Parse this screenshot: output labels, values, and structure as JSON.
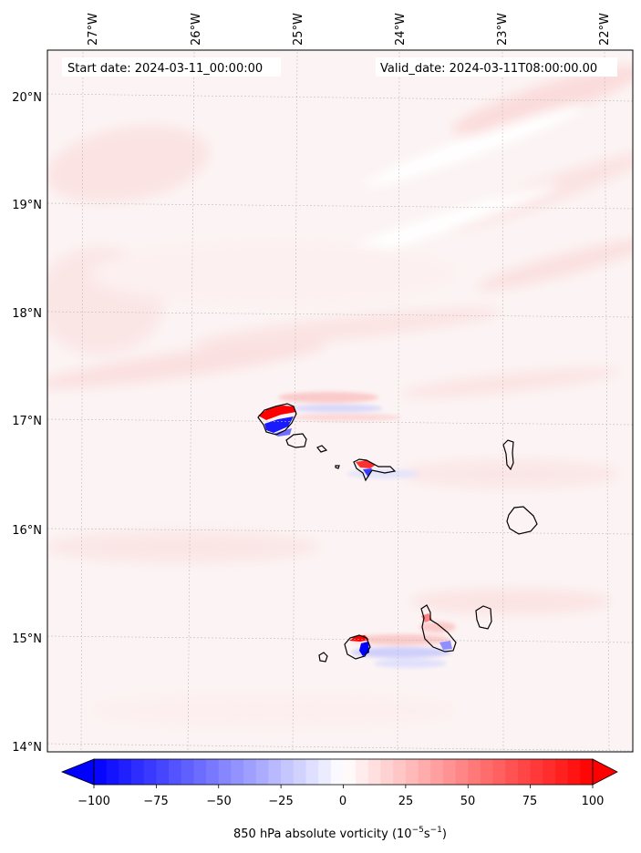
{
  "map": {
    "start_date": "Start date: 2024-03-11_00:00:00",
    "valid_date": "Valid_date: 2024-03-11T08:00:00.00",
    "lon_labels": [
      "27°W",
      "26°W",
      "25°W",
      "24°W",
      "23°W",
      "22°W"
    ],
    "lat_labels": [
      "20°N",
      "19°N",
      "18°N",
      "17°N",
      "16°N",
      "15°N",
      "14°N"
    ],
    "gridlines": true,
    "colors": {
      "positive": "#ff0000",
      "negative": "#0000ff",
      "background_tint": "#fdf3f3"
    }
  },
  "colorbar": {
    "label_prefix": "850 hPa absolute vorticity (10",
    "label_exp1": "−5",
    "label_mid": "s",
    "label_exp2": "−1",
    "label_suffix": ")",
    "ticks": [
      "−100",
      "−75",
      "−50",
      "−25",
      "0",
      "25",
      "50",
      "75",
      "100"
    ],
    "min": -100,
    "max": 100,
    "extend": "both"
  }
}
